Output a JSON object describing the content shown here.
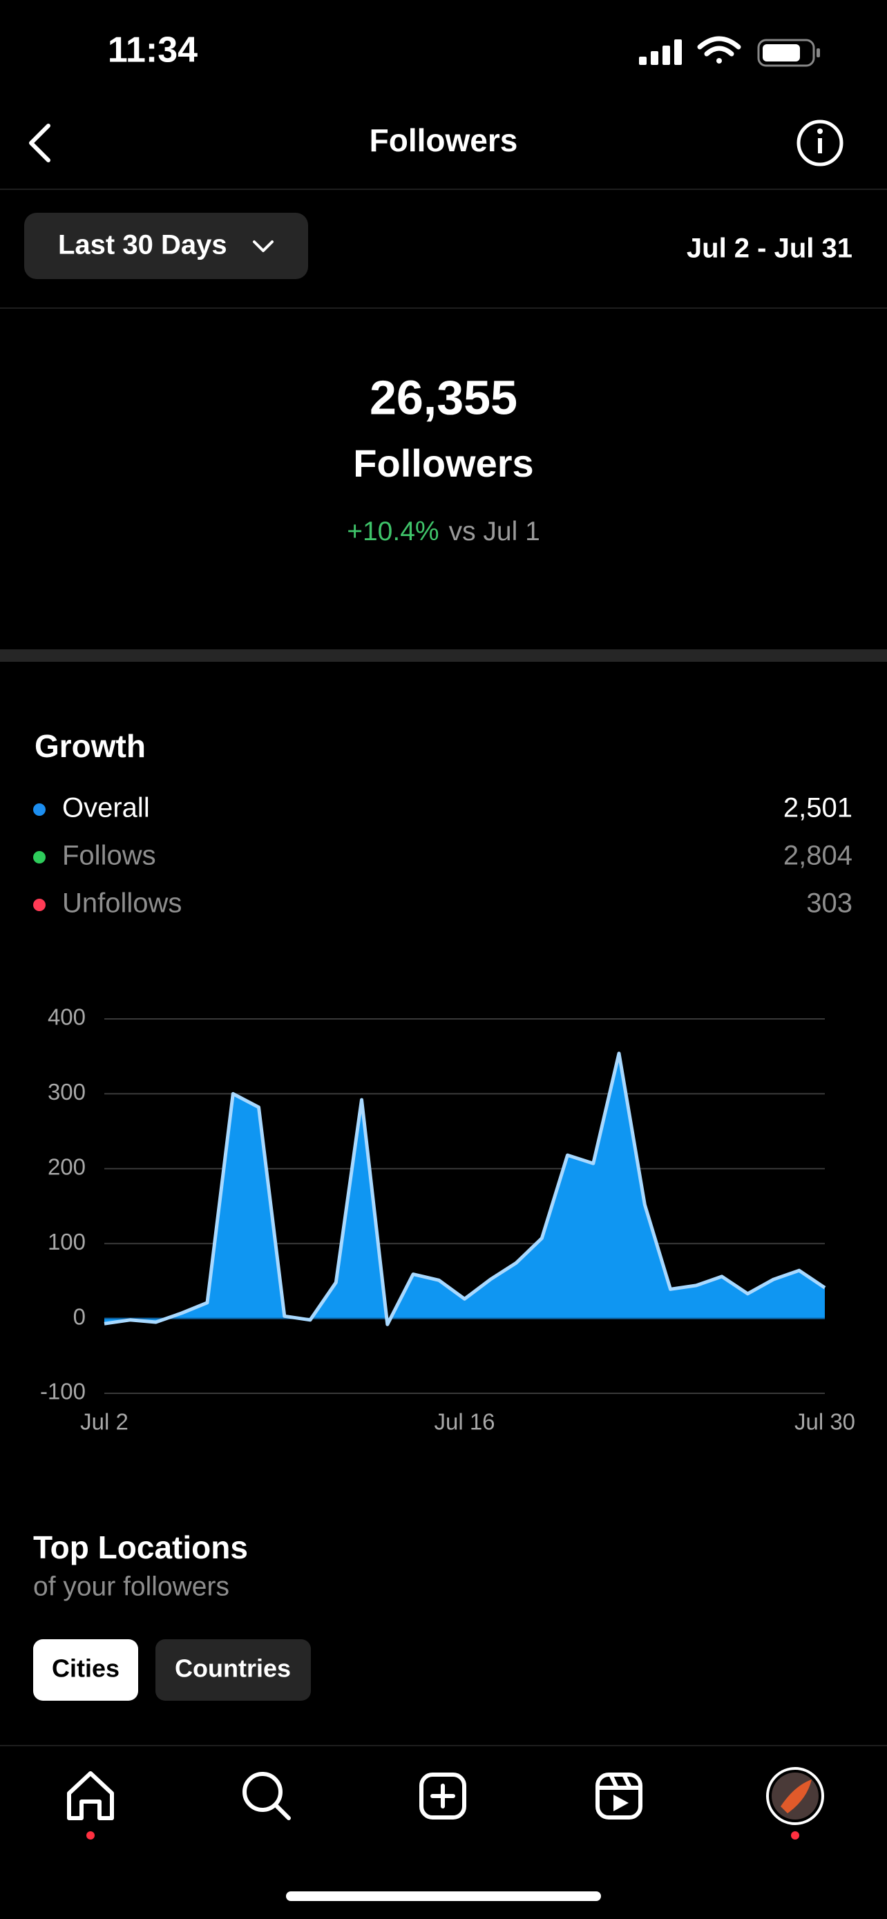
{
  "status_bar": {
    "time": "11:34"
  },
  "header": {
    "title": "Followers"
  },
  "filter": {
    "range_button": "Last 30 Days",
    "date_range": "Jul 2 - Jul 31"
  },
  "summary": {
    "count": "26,355",
    "label": "Followers",
    "change": "+10.4%",
    "comparison": "vs Jul 1"
  },
  "growth": {
    "title": "Growth",
    "legend": [
      {
        "label": "Overall",
        "value": "2,501",
        "color": "#1c8ef0"
      },
      {
        "label": "Follows",
        "value": "2,804",
        "color": "#2ecc5b"
      },
      {
        "label": "Unfollows",
        "value": "303",
        "color": "#ff3b55"
      }
    ]
  },
  "chart_data": {
    "type": "area",
    "categories": [
      "Jul 2",
      null,
      null,
      null,
      null,
      null,
      null,
      null,
      null,
      null,
      null,
      null,
      null,
      null,
      "Jul 16",
      null,
      null,
      null,
      null,
      null,
      null,
      null,
      null,
      null,
      null,
      null,
      null,
      null,
      "Jul 30"
    ],
    "values": [
      -7,
      -2,
      -5,
      7,
      21,
      300,
      282,
      3,
      -2,
      48,
      292,
      -8,
      59,
      51,
      26,
      52,
      74,
      107,
      218,
      207,
      354,
      152,
      39,
      44,
      56,
      33,
      52,
      64,
      41
    ],
    "color": "#0f96f2",
    "line_color": "#a9d9ff",
    "ylim": [
      -100,
      400
    ],
    "yticks": [
      -100,
      0,
      100,
      200,
      300,
      400
    ],
    "grid": true
  },
  "locations": {
    "title": "Top Locations",
    "subtitle": "of your followers",
    "tabs": [
      "Cities",
      "Countries"
    ]
  }
}
